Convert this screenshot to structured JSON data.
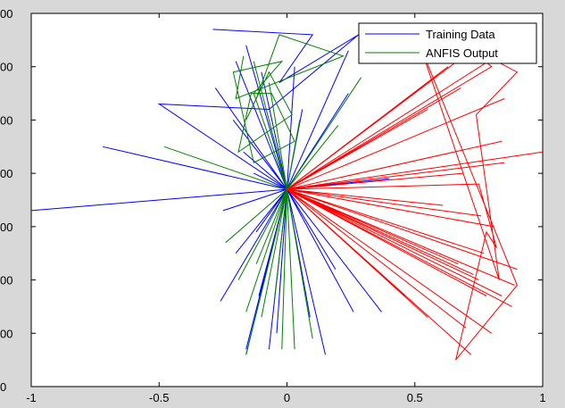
{
  "chart_data": {
    "type": "line",
    "title": "",
    "xlabel": "",
    "ylabel": "",
    "xlim": [
      -1,
      1
    ],
    "ylim": [
      0,
      7
    ],
    "xticks": [
      -1,
      -0.5,
      0,
      0.5,
      1
    ],
    "xtick_labels": [
      "-1",
      "-0.5",
      "0",
      "0.5",
      "1"
    ],
    "yticks": [
      0,
      1,
      2,
      3,
      4,
      5,
      6,
      7
    ],
    "ytick_labels": [
      "0",
      "00",
      "00",
      "00",
      "00",
      "00",
      "00",
      "00"
    ],
    "grid": false,
    "legend_position": "top-right",
    "legend": [
      {
        "label": "Training Data",
        "color": "#0000ff"
      },
      {
        "label": "ANFIS Output",
        "color": "#008000"
      }
    ],
    "series": [
      {
        "name": "Training Data",
        "color": "#0000ff",
        "x": [
          -0.29,
          0.1,
          -0.03,
          0.28,
          -0.07,
          -0.5,
          0.0,
          -1.0,
          0.0,
          -0.72,
          0.0,
          -0.28,
          0.0,
          -0.16,
          0.0,
          -0.2,
          0.0,
          -0.13,
          0.0,
          0.24,
          0.0,
          -0.25,
          0.0,
          -0.12,
          0.0,
          -0.2,
          0.0,
          0.06,
          0.0,
          -0.03,
          0.0,
          0.0,
          -0.11,
          0.0,
          -0.16,
          0.0,
          0.15,
          0.0,
          0.09,
          0.0,
          0.37,
          0.0,
          0.4,
          0.0,
          0.24,
          0.0,
          -0.1,
          0.0,
          -0.21,
          0.0,
          -0.17,
          0.0,
          0.03,
          0.0,
          -0.07,
          0.0,
          -0.03,
          0.0,
          0.19,
          0.0,
          0.26,
          0.0,
          -0.04,
          0.0,
          -0.16,
          0.0,
          -0.26
        ],
        "y": [
          6.7,
          6.6,
          5.7,
          6.6,
          5.2,
          5.3,
          3.7,
          3.3,
          3.7,
          4.5,
          3.7,
          5.6,
          3.7,
          6.4,
          3.7,
          6.1,
          3.7,
          4.0,
          3.7,
          6.3,
          3.7,
          3.3,
          3.7,
          2.9,
          3.7,
          2.5,
          3.7,
          5.2,
          3.7,
          4.2,
          3.7,
          3.7,
          1.7,
          3.7,
          0.6,
          3.7,
          0.6,
          3.7,
          1.3,
          3.7,
          1.4,
          3.7,
          3.9,
          3.7,
          5.5,
          3.7,
          5.9,
          3.7,
          5.0,
          3.7,
          4.4,
          3.7,
          6.0,
          3.7,
          0.7,
          3.7,
          1.7,
          3.7,
          2.2,
          3.7,
          1.4,
          3.7,
          1.0,
          3.7,
          0.7,
          3.7,
          1.6
        ]
      },
      {
        "name": "ANFIS Output",
        "color": "#008000",
        "x": [
          -0.17,
          -0.2,
          0.22,
          -0.03,
          -0.12,
          -0.16,
          -0.07,
          0.02,
          -0.19,
          -0.14,
          -0.06,
          0.03,
          -0.13,
          -0.21,
          -0.02,
          -0.13,
          0.0,
          0.29,
          0.0,
          -0.48,
          0.0,
          -0.13,
          0.0,
          0.2,
          0.0,
          0.05,
          0.0,
          -0.07,
          0.0,
          -0.16,
          0.0,
          0.0,
          0.0,
          -0.24,
          0.0,
          0.1,
          0.0,
          -0.1,
          0.0,
          -0.02,
          0.0,
          -0.19,
          0.0,
          -0.16,
          0.0,
          -0.05,
          0.0,
          0.03,
          0.0,
          -0.12,
          0.0
        ],
        "y": [
          6.2,
          5.4,
          6.2,
          6.6,
          5.4,
          5.0,
          5.9,
          5.1,
          4.4,
          5.5,
          5.5,
          4.6,
          4.2,
          5.9,
          6.1,
          5.5,
          3.7,
          5.8,
          3.7,
          4.5,
          3.7,
          6.1,
          3.7,
          4.9,
          3.7,
          5.0,
          3.7,
          5.7,
          3.7,
          0.6,
          3.7,
          3.7,
          3.7,
          2.7,
          3.7,
          0.9,
          3.7,
          1.3,
          3.7,
          0.7,
          3.7,
          2.0,
          3.7,
          1.4,
          3.7,
          1.6,
          3.7,
          0.7,
          3.7,
          2.3,
          3.7
        ]
      },
      {
        "name": "",
        "color": "#ff0000",
        "x": [
          0.0,
          0.8,
          0.7,
          0.9,
          0.74,
          0.83,
          0.52,
          0.9,
          0.66,
          0.78,
          0.82,
          0.75,
          0.0,
          0.72,
          0.0,
          0.82,
          0.0,
          0.89,
          0.0,
          0.76,
          0.0,
          0.72,
          0.0,
          0.63,
          0.0,
          0.88,
          0.0,
          0.84,
          0.0,
          0.46,
          0.0,
          0.67,
          0.0,
          0.84,
          0.0,
          0.55,
          0.0,
          0.75,
          0.0,
          0.8,
          0.0,
          0.69,
          0.0,
          0.77,
          0.0,
          0.55,
          0.0,
          0.85,
          0.0,
          0.73,
          0.0,
          0.61,
          0.0,
          0.81,
          0.0,
          0.68,
          0.0,
          0.9,
          0.0,
          0.7,
          0.0,
          0.85,
          0.0,
          0.78,
          0.0,
          1.0
        ],
        "y": [
          3.7,
          6.0,
          6.4,
          5.9,
          5.1,
          2.0,
          6.4,
          1.9,
          0.5,
          2.9,
          2.6,
          3.8,
          3.7,
          6.3,
          3.7,
          6.2,
          3.7,
          1.9,
          3.7,
          3.2,
          3.7,
          0.6,
          3.7,
          6.0,
          3.7,
          1.5,
          3.7,
          1.7,
          3.7,
          1.7,
          3.7,
          2.3,
          3.7,
          4.6,
          3.7,
          5.2,
          3.7,
          2.0,
          3.7,
          1.0,
          3.7,
          4.0,
          3.7,
          2.5,
          3.7,
          1.3,
          3.7,
          5.4,
          3.7,
          2.1,
          3.7,
          3.4,
          3.7,
          3.0,
          3.7,
          5.6,
          3.7,
          2.2,
          3.7,
          1.1,
          3.7,
          4.2,
          3.7,
          1.7,
          3.7,
          4.4
        ]
      }
    ]
  }
}
